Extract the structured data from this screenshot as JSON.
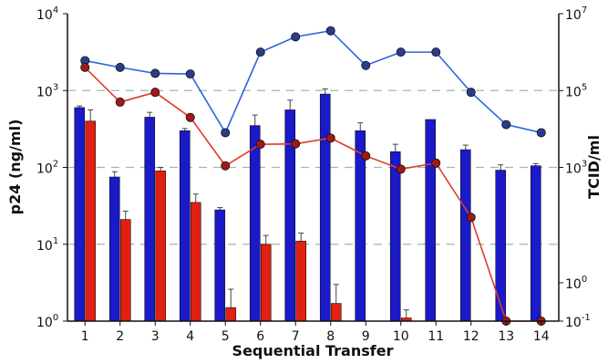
{
  "chart_data": {
    "type": "bar",
    "xlabel": "Sequential Transfer",
    "ylabel": "p24 (ng/ml)",
    "y2label": "TCID/ml",
    "categories": [
      "1",
      "2",
      "3",
      "4",
      "5",
      "6",
      "7",
      "8",
      "9",
      "10",
      "11",
      "12",
      "13",
      "14"
    ],
    "y_left": {
      "scale": "log",
      "range": [
        1,
        10000
      ],
      "ticks": [
        {
          "value": 1,
          "base": "10",
          "exp": "0"
        },
        {
          "value": 10,
          "base": "10",
          "exp": "1"
        },
        {
          "value": 100,
          "base": "10",
          "exp": "2"
        },
        {
          "value": 1000,
          "base": "10",
          "exp": "3"
        },
        {
          "value": 10000,
          "base": "10",
          "exp": "4"
        }
      ]
    },
    "y_right": {
      "scale": "log",
      "range": [
        0.1,
        10000000
      ],
      "ticks": [
        {
          "value": 0.1,
          "base": "10",
          "exp": "-1"
        },
        {
          "value": 1,
          "base": "10",
          "exp": "0"
        },
        {
          "value": 1000,
          "base": "10",
          "exp": "3"
        },
        {
          "value": 100000,
          "base": "10",
          "exp": "5"
        },
        {
          "value": 10000000,
          "base": "10",
          "exp": "7"
        }
      ]
    },
    "grid": {
      "dashed_lines_at_left_values": [
        10,
        100,
        1000
      ],
      "color": "#9fb8b0"
    },
    "bar_series": [
      {
        "color": "#1a1ac8",
        "values": [
          600,
          75,
          450,
          300,
          28,
          350,
          560,
          900,
          300,
          160,
          420,
          170,
          92,
          105
        ],
        "error_top": [
          630,
          88,
          520,
          320,
          30,
          480,
          750,
          1050,
          380,
          200,
          null,
          195,
          108,
          112
        ]
      },
      {
        "color": "#e02010",
        "values": [
          400,
          21,
          90,
          35,
          1.5,
          10,
          11,
          1.7,
          null,
          1.1,
          null,
          null,
          null,
          null
        ],
        "error_top": [
          560,
          27,
          100,
          45,
          2.6,
          13,
          14,
          3.0,
          null,
          1.4,
          null,
          null,
          null,
          null
        ]
      }
    ],
    "line_series": [
      {
        "color": "#2d63dc",
        "marker_color": "#2c3c8c",
        "axis": "right",
        "values": [
          600000,
          400000,
          280000,
          270000,
          8000,
          1000000,
          2500000,
          3600000,
          450000,
          1000000,
          1000000,
          90000,
          13000,
          8000
        ]
      },
      {
        "color": "#e03a2a",
        "marker_color": "#a01818",
        "axis": "right",
        "values": [
          400000,
          50000,
          90000,
          20000,
          1100,
          4000,
          4100,
          5800,
          2000,
          900,
          1300,
          50,
          0.1,
          0.1
        ]
      }
    ]
  }
}
